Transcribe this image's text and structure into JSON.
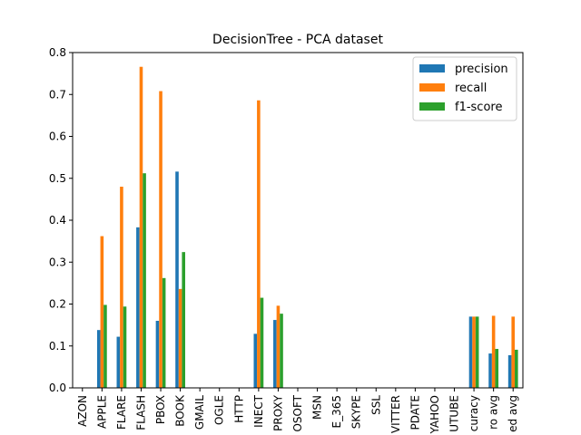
{
  "chart_data": {
    "type": "bar",
    "title": "DecisionTree - PCA dataset",
    "xlabel": "",
    "ylabel": "",
    "ylim": [
      0,
      0.8
    ],
    "yticks": [
      "0.0",
      "0.1",
      "0.2",
      "0.3",
      "0.4",
      "0.5",
      "0.6",
      "0.7",
      "0.8"
    ],
    "grid": false,
    "legend_position": "top-right",
    "categories": [
      "AZON",
      "APPLE",
      "FLARE",
      "FLASH",
      "PBOX",
      "BOOK",
      "GMAIL",
      "OGLE",
      "HTTP",
      "INECT",
      "PROXY",
      "OSOFT",
      "MSN",
      "E_365",
      "SKYPE",
      "SSL",
      "VITTER",
      "PDATE",
      "YAHOO",
      "UTUBE",
      "curacy",
      "ro avg",
      "ed avg"
    ],
    "series": [
      {
        "name": "precision",
        "color": "#1f77b4",
        "values": [
          0.0,
          0.138,
          0.122,
          0.383,
          0.16,
          0.516,
          0.0,
          0.0,
          0.0,
          0.129,
          0.162,
          0.0,
          0.0,
          0.0,
          0.0,
          0.0,
          0.0,
          0.0,
          0.0,
          0.0,
          0.17,
          0.082,
          0.078
        ]
      },
      {
        "name": "recall",
        "color": "#ff7f0e",
        "values": [
          0.0,
          0.362,
          0.48,
          0.766,
          0.708,
          0.236,
          0.0,
          0.0,
          0.0,
          0.686,
          0.196,
          0.0,
          0.0,
          0.0,
          0.0,
          0.0,
          0.0,
          0.0,
          0.0,
          0.0,
          0.17,
          0.172,
          0.17
        ]
      },
      {
        "name": "f1-score",
        "color": "#2ca02c",
        "values": [
          0.0,
          0.198,
          0.194,
          0.512,
          0.262,
          0.324,
          0.0,
          0.0,
          0.0,
          0.215,
          0.177,
          0.0,
          0.0,
          0.0,
          0.0,
          0.0,
          0.0,
          0.0,
          0.0,
          0.0,
          0.17,
          0.093,
          0.091
        ]
      }
    ]
  }
}
